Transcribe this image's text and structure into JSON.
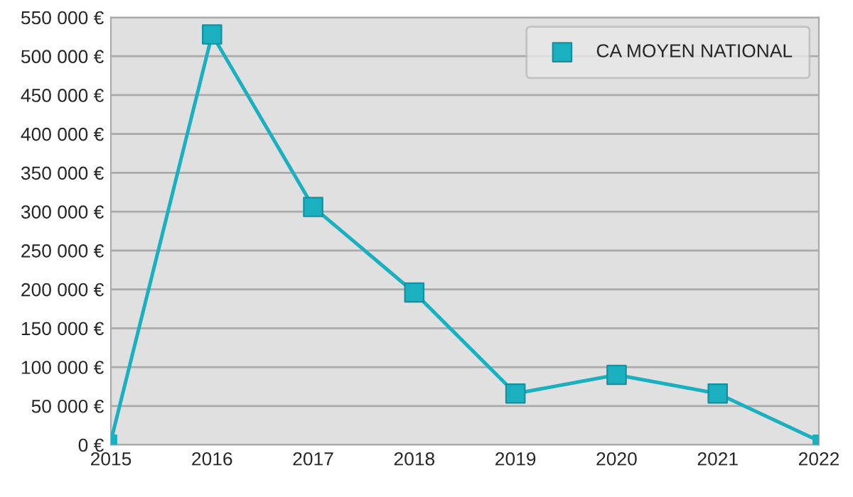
{
  "chart_data": {
    "type": "line",
    "x": [
      2015,
      2016,
      2017,
      2018,
      2019,
      2020,
      2021,
      2022
    ],
    "series": [
      {
        "name": "CA MOYEN NATIONAL",
        "color": "#1ab0c0",
        "values": [
          5000,
          528000,
          306000,
          196000,
          66000,
          90000,
          66000,
          5000
        ]
      }
    ],
    "xlim": [
      2015,
      2022
    ],
    "xticks": [
      2015,
      2016,
      2017,
      2018,
      2019,
      2020,
      2021,
      2022
    ],
    "ylim": [
      0,
      550000
    ],
    "yticks": [
      {
        "value": 0,
        "label": "0 €"
      },
      {
        "value": 50000,
        "label": "50 000 €"
      },
      {
        "value": 100000,
        "label": "100 000 €"
      },
      {
        "value": 150000,
        "label": "150 000 €"
      },
      {
        "value": 200000,
        "label": "200 000 €"
      },
      {
        "value": 250000,
        "label": "250 000 €"
      },
      {
        "value": 300000,
        "label": "300 000 €"
      },
      {
        "value": 350000,
        "label": "350 000 €"
      },
      {
        "value": 400000,
        "label": "400 000 €"
      },
      {
        "value": 450000,
        "label": "450 000 €"
      },
      {
        "value": 500000,
        "label": "500 000 €"
      },
      {
        "value": 550000,
        "label": "550 000 €"
      }
    ],
    "grid": "y",
    "legend": "top right",
    "marker": "square",
    "line_style": "solid"
  }
}
